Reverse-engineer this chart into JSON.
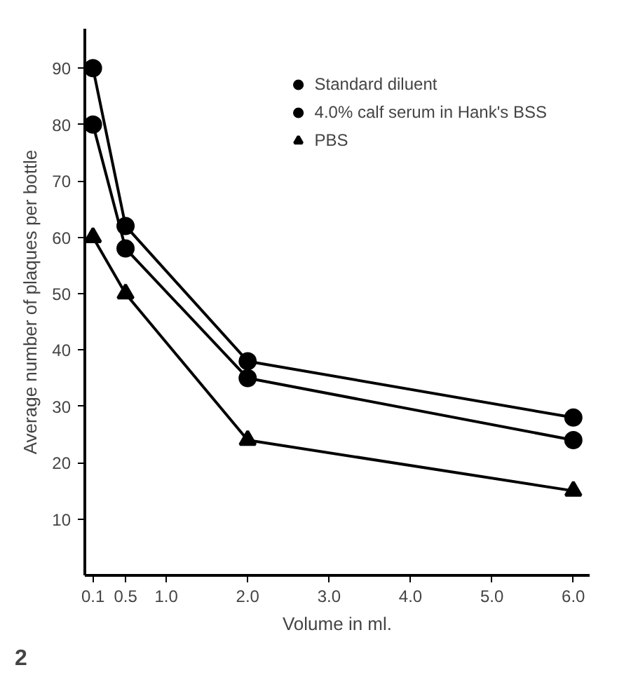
{
  "chart_data": {
    "type": "line",
    "xlabel": "Volume in ml.",
    "ylabel": "Average number of plaques per bottle",
    "xlim": [
      0,
      6.2
    ],
    "ylim": [
      0,
      97
    ],
    "xticks": [
      {
        "value": 0.1,
        "label": "0.1"
      },
      {
        "value": 0.5,
        "label": "0.5"
      },
      {
        "value": 1.0,
        "label": "1.0"
      },
      {
        "value": 2.0,
        "label": "2.0"
      },
      {
        "value": 3.0,
        "label": "3.0"
      },
      {
        "value": 4.0,
        "label": "4.0"
      },
      {
        "value": 5.0,
        "label": "5.0"
      },
      {
        "value": 6.0,
        "label": "6.0"
      }
    ],
    "yticks": [
      10,
      20,
      30,
      40,
      50,
      60,
      70,
      80,
      90
    ],
    "x": [
      0.1,
      0.5,
      2.0,
      6.0
    ],
    "series": [
      {
        "name": "Standard diluent",
        "color": "#000000",
        "marker": "circle",
        "values": [
          90,
          62,
          38,
          28
        ]
      },
      {
        "name": "4.0% calf serum in Hank's BSS",
        "color": "#000000",
        "marker": "circle",
        "values": [
          80,
          58,
          35,
          24
        ]
      },
      {
        "name": "PBS",
        "color": "#000000",
        "marker": "triangle",
        "values": [
          60,
          50,
          24,
          15
        ]
      }
    ],
    "legend": "top right",
    "grid": false,
    "line_style": "solid",
    "annotations": [
      "2"
    ]
  }
}
